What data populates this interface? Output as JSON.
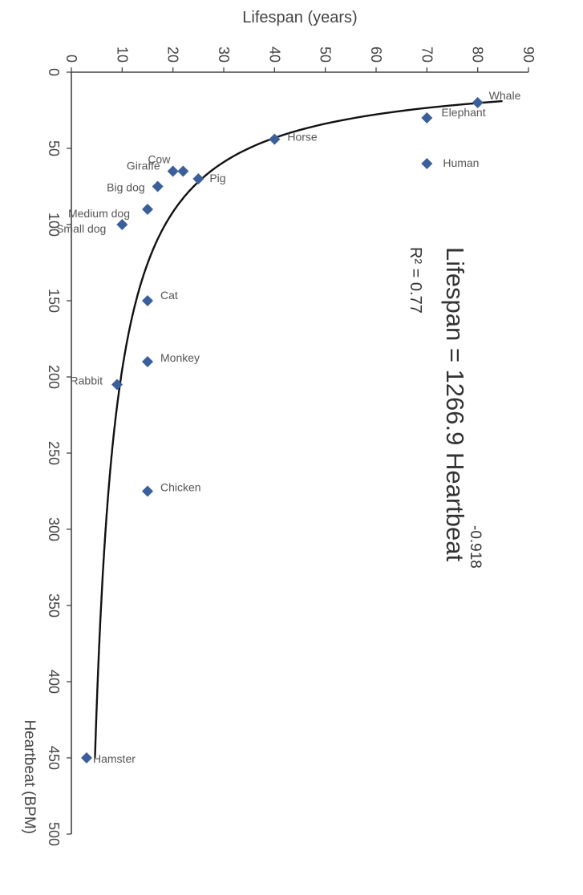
{
  "chart_data": {
    "type": "scatter",
    "xlabel": "Heartbeat (BPM)",
    "ylabel": "Lifespan (years)",
    "xlim": [
      0,
      500
    ],
    "ylim": [
      0,
      90
    ],
    "xticks": [
      "0",
      "50",
      "100",
      "150",
      "200",
      "250",
      "300",
      "350",
      "400",
      "450",
      "500"
    ],
    "yticks": [
      "0",
      "10",
      "20",
      "30",
      "40",
      "50",
      "60",
      "70",
      "80",
      "90"
    ],
    "grid": false,
    "rotation": "rotated 90° clockwise",
    "marker_color": "#3a5f9a",
    "curve_color": "#111111",
    "points": [
      {
        "label": "Whale",
        "x": 20,
        "y": 80
      },
      {
        "label": "Elephant",
        "x": 30,
        "y": 70
      },
      {
        "label": "Human",
        "x": 60,
        "y": 70
      },
      {
        "label": "Horse",
        "x": 44,
        "y": 40
      },
      {
        "label": "Pig",
        "x": 70,
        "y": 25
      },
      {
        "label": "Cow",
        "x": 65,
        "y": 22
      },
      {
        "label": "Giraffe",
        "x": 65,
        "y": 20
      },
      {
        "label": "Big dog",
        "x": 75,
        "y": 17
      },
      {
        "label": "Medium dog",
        "x": 90,
        "y": 15
      },
      {
        "label": "Small dog",
        "x": 100,
        "y": 10
      },
      {
        "label": "Cat",
        "x": 150,
        "y": 15
      },
      {
        "label": "Monkey",
        "x": 190,
        "y": 15
      },
      {
        "label": "Rabbit",
        "x": 205,
        "y": 9
      },
      {
        "label": "Chicken",
        "x": 275,
        "y": 15
      },
      {
        "label": "Hamster",
        "x": 450,
        "y": 3
      }
    ],
    "trendline": {
      "type": "power",
      "coefficient": 1266.9,
      "exponent": -0.918,
      "equation_text": "Lifespan = 1266.9 Heartbeat",
      "exponent_text": "-0.918",
      "r2_text": "R² = 0.77"
    }
  }
}
